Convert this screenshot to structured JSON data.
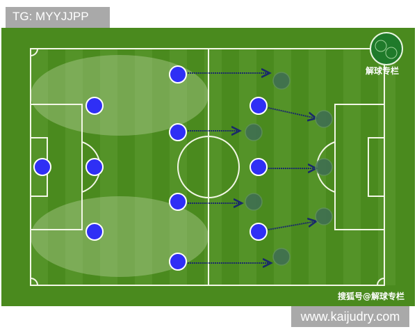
{
  "header_tag": "TG: MYYJJPP",
  "footer_tag": "www.kaijudry.com",
  "logo_text": "解球专栏",
  "credit": "搜狐号@解球专栏",
  "colors": {
    "pitch": "#4a8a1e",
    "stripe_light": "#5c9a2e",
    "team": "#2f2ff5",
    "opponent": "#3f6f52",
    "arrow": "#1a2a6a",
    "zone": "#c8dcb0"
  },
  "team_players": 11,
  "opponent_players": 7
}
